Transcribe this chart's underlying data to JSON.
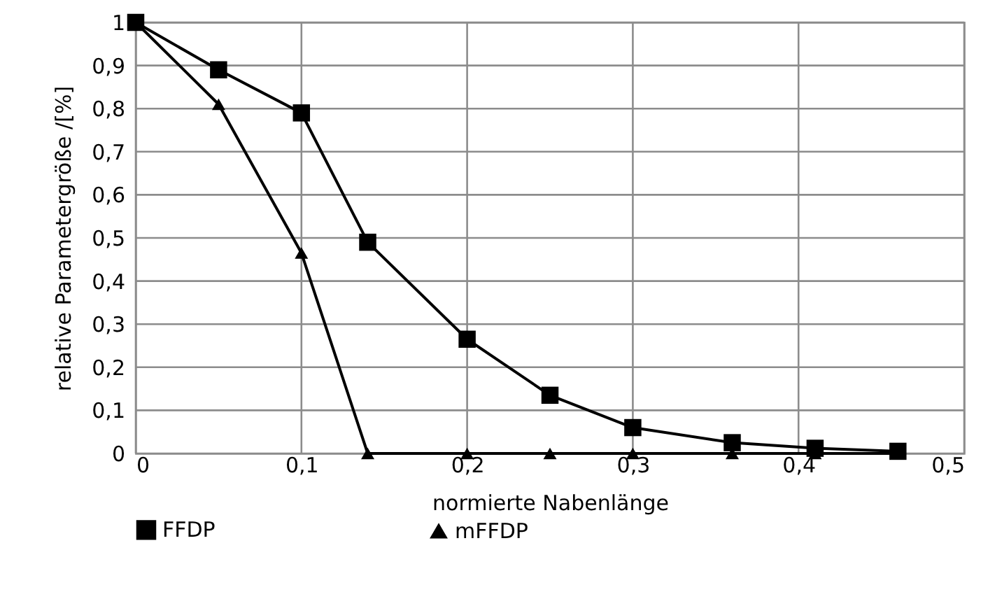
{
  "chart_data": {
    "type": "line",
    "xlabel": "normierte Nabenlänge",
    "ylabel": "relative Parametergröße /[%]",
    "xlim": [
      0,
      0.5
    ],
    "xticks": [
      0,
      {
        "value": 0.1,
        "label": "0,1"
      },
      {
        "value": 0.2,
        "label": "0,2"
      },
      {
        "value": 0.3,
        "label": "0,3"
      },
      {
        "value": 0.4,
        "label": "0,4"
      },
      {
        "value": 0.5,
        "label": "0,5"
      }
    ],
    "ylim": [
      0,
      1
    ],
    "yticks": [
      0,
      {
        "value": 0.1,
        "label": "0,1"
      },
      {
        "value": 0.2,
        "label": "0,2"
      },
      {
        "value": 0.3,
        "label": "0,3"
      },
      {
        "value": 0.4,
        "label": "0,4"
      },
      {
        "value": 0.5,
        "label": "0,5"
      },
      {
        "value": 0.6,
        "label": "0,6"
      },
      {
        "value": 0.7,
        "label": "0,7"
      },
      {
        "value": 0.8,
        "label": "0,8"
      },
      {
        "value": 0.9,
        "label": "0,9"
      },
      1
    ],
    "grid": true,
    "legend": "bottom",
    "line_style": "solid",
    "series": [
      {
        "name": "FFDP",
        "color": "#000000",
        "marker": "square",
        "x": [
          0,
          0.05,
          0.1,
          0.14,
          0.2,
          0.25,
          0.3,
          0.36,
          0.41,
          0.46
        ],
        "values": [
          1,
          0.89,
          0.79,
          0.49,
          0.265,
          0.135,
          0.06,
          0.025,
          0.012,
          0.005
        ]
      },
      {
        "name": "mFFDP",
        "color": "#000000",
        "marker": "triangle",
        "x": [
          0,
          0.05,
          0.1,
          0.14,
          0.2,
          0.25,
          0.3,
          0.36,
          0.41,
          0.46
        ],
        "values": [
          1,
          0.81,
          0.465,
          0,
          0,
          0,
          0,
          0,
          0,
          0
        ]
      }
    ]
  }
}
